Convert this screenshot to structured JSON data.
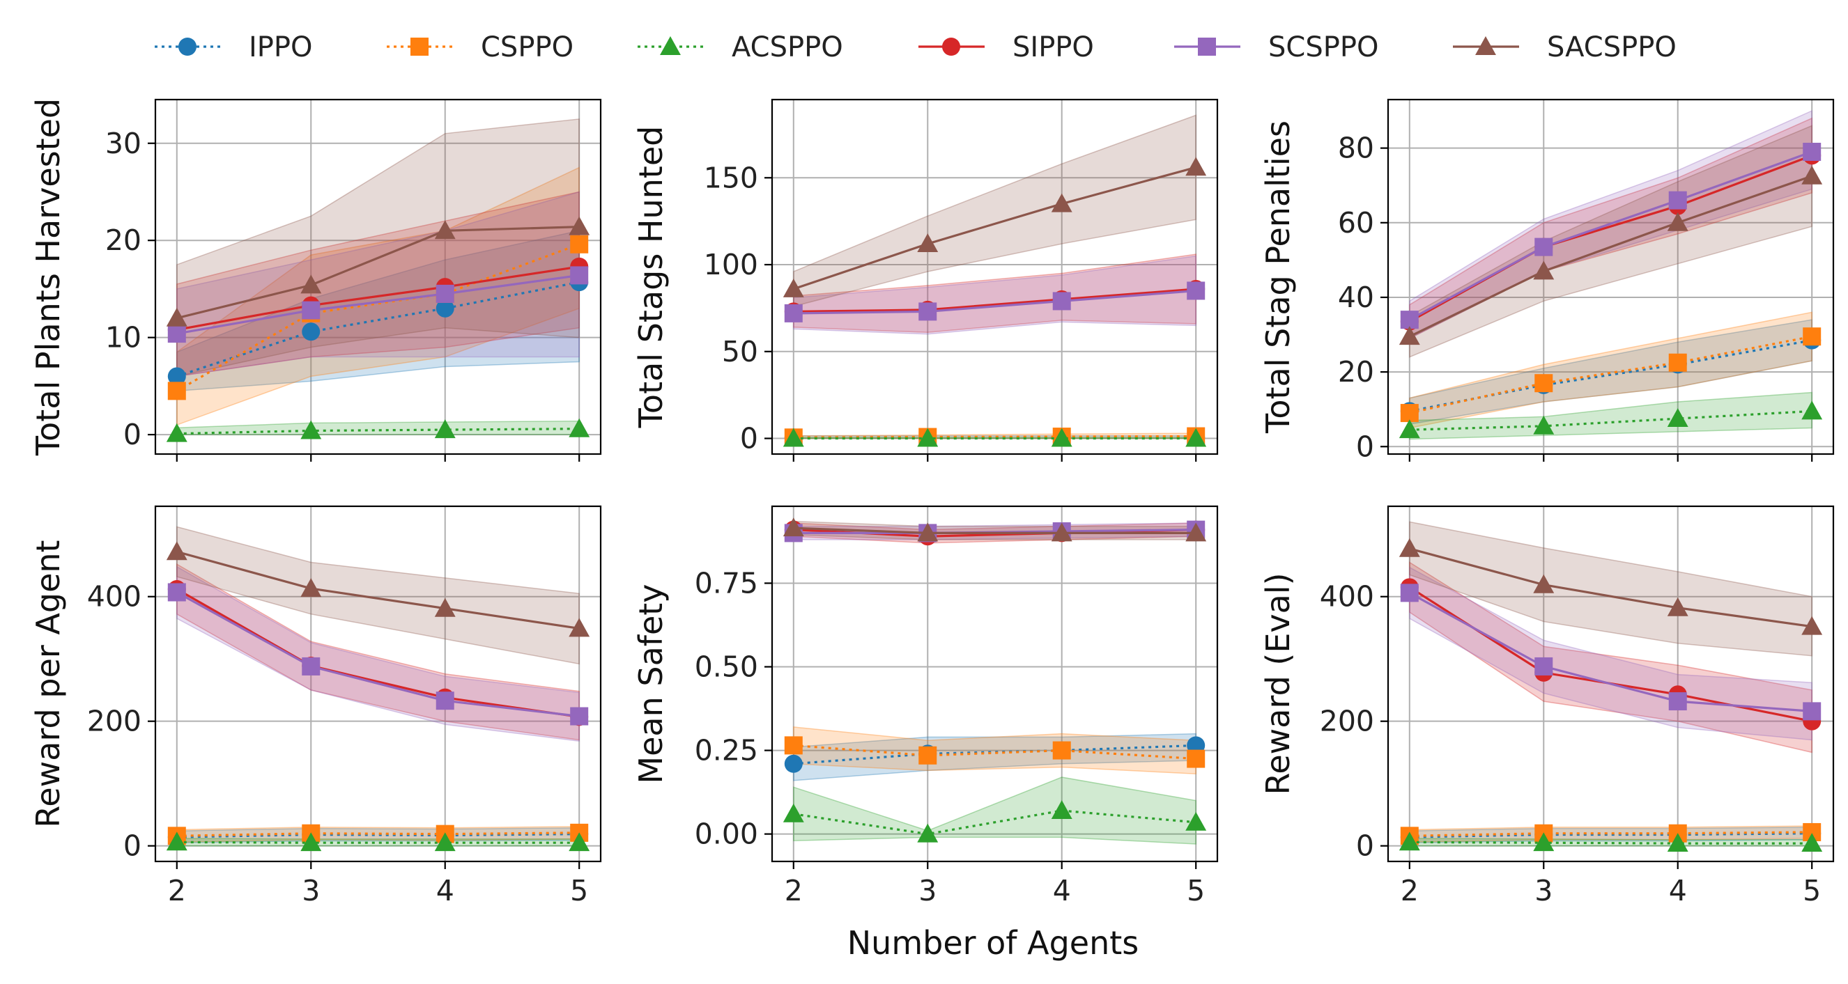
{
  "legend": [
    {
      "name": "IPPO",
      "color": "#1f77b4",
      "marker": "circle",
      "dash": "dotted"
    },
    {
      "name": "CSPPO",
      "color": "#ff7f0e",
      "marker": "square",
      "dash": "dotted"
    },
    {
      "name": "ACSPPO",
      "color": "#2ca02c",
      "marker": "triangle",
      "dash": "dotted"
    },
    {
      "name": "SIPPO",
      "color": "#d62728",
      "marker": "circle",
      "dash": "solid"
    },
    {
      "name": "SCSPPO",
      "color": "#9467bd",
      "marker": "square",
      "dash": "solid"
    },
    {
      "name": "SACSPPO",
      "color": "#8c564b",
      "marker": "triangle",
      "dash": "solid"
    }
  ],
  "shared_xlabel": "Number of Agents",
  "chart_data": [
    {
      "type": "line",
      "ylabel": "Total Plants Harvested",
      "x": [
        2,
        3,
        4,
        5
      ],
      "ylim": [
        -2,
        34.5
      ],
      "yticks": [
        0,
        10,
        20,
        30
      ],
      "xticks": [
        2,
        3,
        4,
        5
      ],
      "series": [
        {
          "name": "IPPO",
          "values": [
            6,
            10.6,
            13,
            15.7
          ],
          "lower": [
            4.5,
            5.5,
            7,
            7.5
          ],
          "upper": [
            8.5,
            14,
            18,
            21
          ]
        },
        {
          "name": "CSPPO",
          "values": [
            4.5,
            12.5,
            14.5,
            19.6
          ],
          "lower": [
            1,
            6,
            8,
            13
          ],
          "upper": [
            8.5,
            18.5,
            21,
            27.5
          ]
        },
        {
          "name": "ACSPPO",
          "values": [
            0.1,
            0.4,
            0.5,
            0.6
          ],
          "lower": [
            0,
            0,
            0,
            0
          ],
          "upper": [
            0.7,
            1.2,
            1.3,
            1.4
          ]
        },
        {
          "name": "SIPPO",
          "values": [
            10.8,
            13.3,
            15.2,
            17.3
          ],
          "lower": [
            6,
            8,
            9,
            11
          ],
          "upper": [
            15.5,
            19,
            22,
            25
          ]
        },
        {
          "name": "SCSPPO",
          "values": [
            10.4,
            12.8,
            14.5,
            16.4
          ],
          "lower": [
            6,
            8,
            8,
            8
          ],
          "upper": [
            15,
            18,
            21,
            25
          ]
        },
        {
          "name": "SACSPPO",
          "values": [
            12,
            15.4,
            21,
            21.4
          ],
          "lower": [
            6,
            9,
            11,
            10
          ],
          "upper": [
            17.5,
            22.5,
            31,
            32.5
          ]
        }
      ]
    },
    {
      "type": "line",
      "ylabel": "Total Stags Hunted",
      "x": [
        2,
        3,
        4,
        5
      ],
      "ylim": [
        -9,
        195
      ],
      "yticks": [
        0,
        50,
        100,
        150
      ],
      "xticks": [
        2,
        3,
        4,
        5
      ],
      "series": [
        {
          "name": "IPPO",
          "values": [
            0.5,
            0.5,
            0.5,
            0.5
          ],
          "lower": [
            0,
            0,
            0,
            0
          ],
          "upper": [
            1.5,
            1.5,
            1.5,
            1.5
          ]
        },
        {
          "name": "CSPPO",
          "values": [
            0.5,
            0.8,
            1,
            1.2
          ],
          "lower": [
            0,
            0,
            0,
            0
          ],
          "upper": [
            1.5,
            2,
            2.5,
            3
          ]
        },
        {
          "name": "ACSPPO",
          "values": [
            0,
            0,
            0,
            0
          ],
          "lower": [
            0,
            0,
            0,
            0
          ],
          "upper": [
            0.5,
            0.5,
            0.5,
            0.5
          ]
        },
        {
          "name": "SIPPO",
          "values": [
            73,
            74,
            80,
            86
          ],
          "lower": [
            64,
            61,
            68,
            66
          ],
          "upper": [
            82,
            88,
            95,
            106
          ]
        },
        {
          "name": "SCSPPO",
          "values": [
            72,
            73,
            79,
            85
          ],
          "lower": [
            63,
            60,
            67,
            65
          ],
          "upper": [
            81,
            87,
            94,
            105
          ]
        },
        {
          "name": "SACSPPO",
          "values": [
            86,
            112,
            135,
            156
          ],
          "lower": [
            76,
            96,
            112,
            126
          ],
          "upper": [
            96,
            128,
            158,
            186
          ]
        }
      ]
    },
    {
      "type": "line",
      "ylabel": "Total Stag Penalties",
      "x": [
        2,
        3,
        4,
        5
      ],
      "ylim": [
        -2,
        93
      ],
      "yticks": [
        0,
        20,
        40,
        60,
        80
      ],
      "xticks": [
        2,
        3,
        4,
        5
      ],
      "series": [
        {
          "name": "IPPO",
          "values": [
            9.5,
            16.5,
            22,
            28.5
          ],
          "lower": [
            6,
            12,
            16,
            23
          ],
          "upper": [
            13,
            21,
            28,
            34
          ]
        },
        {
          "name": "CSPPO",
          "values": [
            9,
            17,
            22.5,
            29.5
          ],
          "lower": [
            5,
            12,
            16,
            23
          ],
          "upper": [
            13,
            22,
            29,
            36
          ]
        },
        {
          "name": "ACSPPO",
          "values": [
            4.5,
            5.5,
            7.5,
            9.5
          ],
          "lower": [
            2,
            3,
            4,
            5
          ],
          "upper": [
            7,
            8,
            12,
            14.5
          ]
        },
        {
          "name": "SIPPO",
          "values": [
            33.5,
            53.5,
            64.5,
            78
          ],
          "lower": [
            29,
            47,
            57,
            68
          ],
          "upper": [
            38,
            60,
            72,
            88
          ]
        },
        {
          "name": "SCSPPO",
          "values": [
            34,
            53.5,
            66,
            79
          ],
          "lower": [
            29,
            47,
            58,
            69
          ],
          "upper": [
            39,
            61,
            74,
            90
          ]
        },
        {
          "name": "SACSPPO",
          "values": [
            29.5,
            47,
            60,
            72.5
          ],
          "lower": [
            24,
            39,
            49,
            59
          ],
          "upper": [
            35,
            55,
            71,
            86
          ]
        }
      ]
    },
    {
      "type": "line",
      "ylabel": "Reward per Agent",
      "x": [
        2,
        3,
        4,
        5
      ],
      "ylim": [
        -25,
        545
      ],
      "yticks": [
        0,
        200,
        400
      ],
      "xticks": [
        2,
        3,
        4,
        5
      ],
      "series": [
        {
          "name": "IPPO",
          "values": [
            14,
            18,
            17,
            19
          ],
          "lower": [
            5,
            8,
            8,
            9
          ],
          "upper": [
            24,
            28,
            27,
            29
          ]
        },
        {
          "name": "CSPPO",
          "values": [
            16,
            20,
            19,
            21
          ],
          "lower": [
            6,
            10,
            9,
            11
          ],
          "upper": [
            26,
            30,
            29,
            31
          ]
        },
        {
          "name": "ACSPPO",
          "values": [
            6,
            5,
            5,
            5
          ],
          "lower": [
            0,
            0,
            0,
            0
          ],
          "upper": [
            12,
            11,
            11,
            11
          ]
        },
        {
          "name": "SIPPO",
          "values": [
            412,
            289,
            238,
            207
          ],
          "lower": [
            372,
            250,
            200,
            170
          ],
          "upper": [
            452,
            328,
            276,
            248
          ]
        },
        {
          "name": "SCSPPO",
          "values": [
            407,
            288,
            233,
            208
          ],
          "lower": [
            365,
            250,
            195,
            168
          ],
          "upper": [
            448,
            326,
            272,
            246
          ]
        },
        {
          "name": "SACSPPO",
          "values": [
            472,
            413,
            381,
            349
          ],
          "lower": [
            432,
            372,
            332,
            292
          ],
          "upper": [
            512,
            455,
            430,
            405
          ]
        }
      ]
    },
    {
      "type": "line",
      "ylabel": "Mean Safety",
      "x": [
        2,
        3,
        4,
        5
      ],
      "ylim": [
        -0.082,
        0.98
      ],
      "yticks": [
        0,
        0.25,
        0.5,
        0.75
      ],
      "xticklabels": [
        "2",
        "3",
        "4",
        "5"
      ],
      "yticklabels": [
        "0.00",
        "0.25",
        "0.50",
        "0.75"
      ],
      "series": [
        {
          "name": "IPPO",
          "values": [
            0.21,
            0.24,
            0.25,
            0.265
          ],
          "lower": [
            0.16,
            0.19,
            0.21,
            0.22
          ],
          "upper": [
            0.26,
            0.29,
            0.29,
            0.3
          ]
        },
        {
          "name": "CSPPO",
          "values": [
            0.265,
            0.235,
            0.25,
            0.225
          ],
          "lower": [
            0.21,
            0.19,
            0.2,
            0.18
          ],
          "upper": [
            0.32,
            0.28,
            0.3,
            0.28
          ]
        },
        {
          "name": "ACSPPO",
          "values": [
            0.06,
            0,
            0.07,
            0.035
          ],
          "lower": [
            -0.02,
            -0.01,
            -0.01,
            -0.03
          ],
          "upper": [
            0.14,
            0.01,
            0.17,
            0.1
          ]
        },
        {
          "name": "SIPPO",
          "values": [
            0.91,
            0.89,
            0.9,
            0.91
          ],
          "lower": [
            0.89,
            0.87,
            0.88,
            0.89
          ],
          "upper": [
            0.93,
            0.91,
            0.92,
            0.93
          ]
        },
        {
          "name": "SCSPPO",
          "values": [
            0.9,
            0.9,
            0.905,
            0.91
          ],
          "lower": [
            0.88,
            0.88,
            0.885,
            0.89
          ],
          "upper": [
            0.92,
            0.92,
            0.925,
            0.93
          ]
        },
        {
          "name": "SACSPPO",
          "values": [
            0.915,
            0.9,
            0.9,
            0.9
          ],
          "lower": [
            0.895,
            0.88,
            0.88,
            0.88
          ],
          "upper": [
            0.935,
            0.92,
            0.92,
            0.92
          ]
        }
      ]
    },
    {
      "type": "line",
      "ylabel": "Reward (Eval)",
      "x": [
        2,
        3,
        4,
        5
      ],
      "ylim": [
        -25,
        545
      ],
      "yticks": [
        0,
        200,
        400
      ],
      "xticks": [
        2,
        3,
        4,
        5
      ],
      "series": [
        {
          "name": "IPPO",
          "values": [
            14,
            18,
            18,
            20
          ],
          "lower": [
            5,
            8,
            8,
            10
          ],
          "upper": [
            24,
            28,
            28,
            30
          ]
        },
        {
          "name": "CSPPO",
          "values": [
            16,
            20,
            20,
            22
          ],
          "lower": [
            6,
            10,
            10,
            12
          ],
          "upper": [
            26,
            30,
            30,
            32
          ]
        },
        {
          "name": "ACSPPO",
          "values": [
            6,
            5,
            4,
            4
          ],
          "lower": [
            0,
            0,
            0,
            0
          ],
          "upper": [
            12,
            11,
            10,
            10
          ]
        },
        {
          "name": "SIPPO",
          "values": [
            415,
            278,
            243,
            200
          ],
          "lower": [
            375,
            232,
            200,
            150
          ],
          "upper": [
            455,
            320,
            290,
            250
          ]
        },
        {
          "name": "SCSPPO",
          "values": [
            406,
            288,
            232,
            216
          ],
          "lower": [
            365,
            245,
            190,
            170
          ],
          "upper": [
            447,
            330,
            275,
            262
          ]
        },
        {
          "name": "SACSPPO",
          "values": [
            477,
            419,
            382,
            352
          ],
          "lower": [
            435,
            360,
            325,
            305
          ],
          "upper": [
            520,
            478,
            440,
            400
          ]
        }
      ]
    }
  ]
}
